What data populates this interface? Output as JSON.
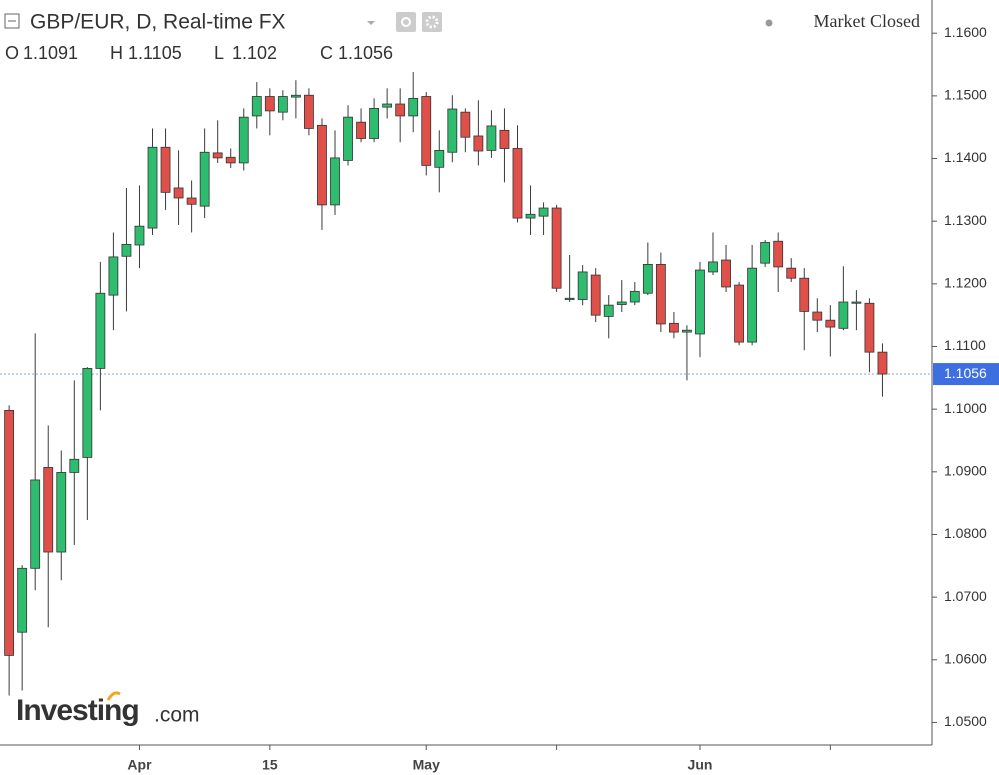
{
  "chart_data": {
    "type": "candlestick",
    "title": "GBP/EUR, D, Real-time FX",
    "status": "Market Closed",
    "legend_ohlc": [
      {
        "label": "O",
        "value": 1.1091
      },
      {
        "label": "H",
        "value": 1.1105
      },
      {
        "label": "L",
        "value": 1.102
      },
      {
        "label": "C",
        "value": 1.1056
      }
    ],
    "watermark_main": "Investing",
    "watermark_suffix": ".com",
    "up_color": "#2ebd6e",
    "down_color": "#e0504a",
    "last_price": {
      "value": 1.1056,
      "label": "1.1056"
    },
    "last_price_color": "#3d6fe0",
    "categories": [
      null,
      null,
      null,
      null,
      null,
      null,
      null,
      null,
      null,
      null,
      "Apr",
      null,
      null,
      null,
      null,
      null,
      null,
      null,
      null,
      null,
      "15",
      null,
      null,
      null,
      null,
      null,
      null,
      null,
      null,
      null,
      null,
      null,
      "May",
      null,
      null,
      null,
      null,
      null,
      null,
      null,
      null,
      null,
      null,
      null,
      null,
      null,
      null,
      null,
      null,
      null,
      null,
      null,
      null,
      "Jun",
      null,
      null,
      null,
      null,
      null,
      null,
      null,
      null,
      null,
      null,
      null,
      null,
      null,
      null
    ],
    "xticks": [
      10,
      20,
      32,
      42,
      53,
      63
    ],
    "xlim": [
      -0.7,
      70.8
    ],
    "open": [
      1.0998,
      1.0644,
      1.0746,
      1.0907,
      1.0772,
      1.0899,
      1.0923,
      1.1065,
      1.1182,
      1.1244,
      1.1262,
      1.1289,
      1.1418,
      1.1353,
      1.1337,
      1.1324,
      1.1409,
      1.1402,
      1.1393,
      1.1468,
      1.1499,
      1.1474,
      1.1498,
      1.1501,
      1.1453,
      1.1326,
      1.1397,
      1.1458,
      1.1432,
      1.1482,
      1.1487,
      1.1468,
      1.1499,
      1.1386,
      1.141,
      1.1474,
      1.1436,
      1.1413,
      1.1445,
      1.1416,
      1.1305,
      1.1308,
      1.1321,
      1.1175,
      1.1175,
      1.1214,
      1.1148,
      1.1167,
      1.1171,
      1.1185,
      1.1231,
      1.1137,
      1.1123,
      1.112,
      1.1219,
      1.1238,
      1.1198,
      1.1107,
      1.1233,
      1.1268,
      1.1225,
      1.1209,
      1.1155,
      1.1142,
      1.1129,
      1.1169,
      1.1169,
      1.1091
    ],
    "high": [
      1.1006,
      1.0751,
      1.1121,
      1.0974,
      1.0934,
      1.1046,
      1.1067,
      1.1235,
      1.1282,
      1.1353,
      1.1357,
      1.1448,
      1.1448,
      1.1413,
      1.1365,
      1.1448,
      1.1461,
      1.1416,
      1.148,
      1.1522,
      1.1512,
      1.1509,
      1.1525,
      1.1512,
      1.1464,
      1.1445,
      1.1485,
      1.148,
      1.1496,
      1.1512,
      1.1512,
      1.1538,
      1.1506,
      1.1445,
      1.1501,
      1.148,
      1.1493,
      1.1477,
      1.148,
      1.1453,
      1.1357,
      1.133,
      1.1326,
      1.1246,
      1.123,
      1.1225,
      1.1182,
      1.1206,
      1.1203,
      1.1266,
      1.125,
      1.1155,
      1.1134,
      1.1235,
      1.1282,
      1.1262,
      1.1203,
      1.1262,
      1.127,
      1.1282,
      1.1241,
      1.1225,
      1.1177,
      1.1166,
      1.1228,
      1.119,
      1.1177,
      1.1105
    ],
    "low": [
      1.0543,
      1.0551,
      1.0711,
      1.0652,
      1.0727,
      1.0783,
      1.0823,
      1.0998,
      1.1126,
      1.1156,
      1.1225,
      1.1278,
      1.1318,
      1.1294,
      1.1282,
      1.1305,
      1.1393,
      1.1385,
      1.1381,
      1.1448,
      1.1437,
      1.1461,
      1.1464,
      1.1437,
      1.1286,
      1.131,
      1.1389,
      1.1426,
      1.1426,
      1.1464,
      1.1426,
      1.1442,
      1.1373,
      1.1346,
      1.1394,
      1.141,
      1.1389,
      1.1401,
      1.1362,
      1.1298,
      1.1278,
      1.1278,
      1.1187,
      1.1171,
      1.1166,
      1.1139,
      1.1113,
      1.1155,
      1.1166,
      1.1182,
      1.1123,
      1.1113,
      1.1046,
      1.1083,
      1.1214,
      1.1187,
      1.1102,
      1.1102,
      1.1227,
      1.1187,
      1.1203,
      1.1094,
      1.1123,
      1.1084,
      1.1126,
      1.1126,
      1.1059,
      1.102
    ],
    "close": [
      1.0607,
      1.0746,
      1.0887,
      1.0772,
      1.0899,
      1.092,
      1.1065,
      1.1185,
      1.1243,
      1.1263,
      1.1292,
      1.1418,
      1.1346,
      1.1337,
      1.1327,
      1.141,
      1.1401,
      1.1393,
      1.1466,
      1.1499,
      1.1476,
      1.1499,
      1.1501,
      1.1448,
      1.1326,
      1.1401,
      1.1466,
      1.1432,
      1.148,
      1.1487,
      1.1468,
      1.1496,
      1.1389,
      1.1413,
      1.1479,
      1.1434,
      1.1412,
      1.1452,
      1.1416,
      1.1305,
      1.1311,
      1.1321,
      1.1193,
      1.1177,
      1.1219,
      1.115,
      1.1166,
      1.1171,
      1.1188,
      1.1231,
      1.1136,
      1.1123,
      1.1126,
      1.1222,
      1.1235,
      1.1195,
      1.1107,
      1.1225,
      1.1266,
      1.1227,
      1.1209,
      1.1156,
      1.1142,
      1.1131,
      1.1171,
      1.1171,
      1.1091,
      1.1056
    ],
    "ylim": [
      1.0464,
      1.1653
    ],
    "yticks": [
      {
        "value": 1.05,
        "label": "1.0500"
      },
      {
        "value": 1.06,
        "label": "1.0600"
      },
      {
        "value": 1.07,
        "label": "1.0700"
      },
      {
        "value": 1.08,
        "label": "1.0800"
      },
      {
        "value": 1.09,
        "label": "1.0900"
      },
      {
        "value": 1.1,
        "label": "1.1000"
      },
      {
        "value": 1.11,
        "label": "1.1100"
      },
      {
        "value": 1.12,
        "label": "1.1200"
      },
      {
        "value": 1.13,
        "label": "1.1300"
      },
      {
        "value": 1.14,
        "label": "1.1400"
      },
      {
        "value": 1.15,
        "label": "1.1500"
      },
      {
        "value": 1.16,
        "label": "1.1600"
      }
    ]
  }
}
